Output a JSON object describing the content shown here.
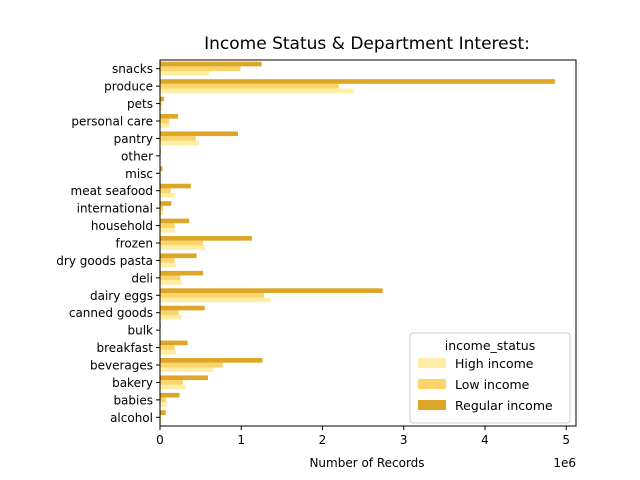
{
  "chart_data": {
    "type": "bar",
    "orientation": "horizontal",
    "title": "Income Status & Department Interest:",
    "xlabel": "Number of Records",
    "ylabel": "",
    "x_offset_label": "1e6",
    "xlim": [
      0,
      5120000
    ],
    "xticks": [
      0,
      1,
      2,
      3,
      4,
      5
    ],
    "xtick_scale": 1000000,
    "grid": false,
    "legend_title": "income_status",
    "legend_position": "lower right",
    "categories": [
      "alcohol",
      "babies",
      "bakery",
      "beverages",
      "breakfast",
      "bulk",
      "canned goods",
      "dairy eggs",
      "deli",
      "dry goods pasta",
      "frozen",
      "household",
      "international",
      "meat seafood",
      "misc",
      "other",
      "pantry",
      "personal care",
      "pets",
      "produce",
      "snacks"
    ],
    "series": [
      {
        "name": "High income",
        "color": "#fdf0a6",
        "values": [
          20000,
          90000,
          310000,
          660000,
          200000,
          5000,
          270000,
          1360000,
          270000,
          200000,
          560000,
          180000,
          40000,
          190000,
          8000,
          5000,
          480000,
          120000,
          30000,
          2380000,
          610000
        ]
      },
      {
        "name": "Low income",
        "color": "#fdd36a",
        "values": [
          10000,
          70000,
          280000,
          770000,
          180000,
          5000,
          230000,
          1280000,
          250000,
          180000,
          530000,
          180000,
          40000,
          130000,
          8000,
          5000,
          440000,
          110000,
          20000,
          2200000,
          990000
        ]
      },
      {
        "name": "Regular income",
        "color": "#dea626",
        "values": [
          70000,
          240000,
          590000,
          1260000,
          340000,
          10000,
          550000,
          2740000,
          530000,
          450000,
          1130000,
          360000,
          140000,
          380000,
          30000,
          10000,
          960000,
          220000,
          50000,
          4860000,
          1250000
        ]
      }
    ]
  }
}
